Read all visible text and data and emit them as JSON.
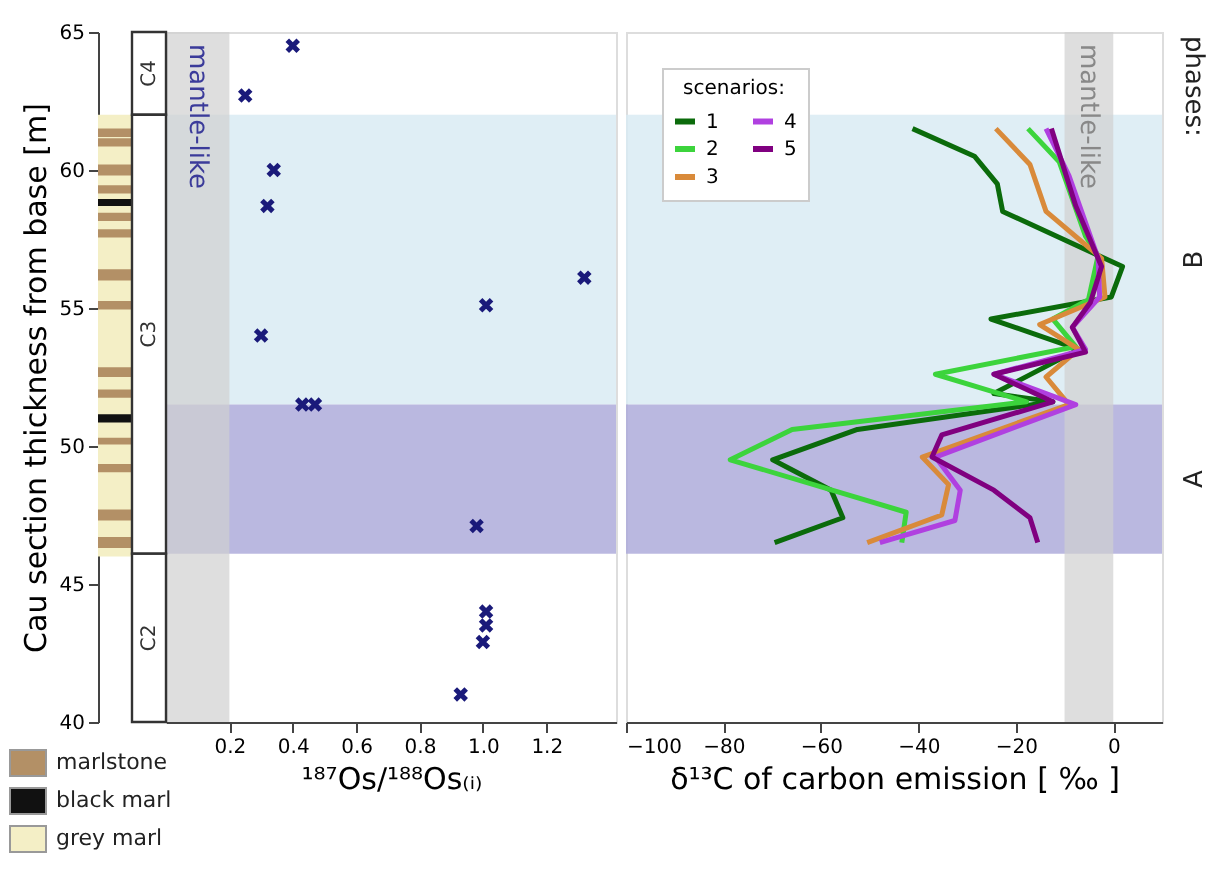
{
  "chart_data": [
    {
      "type": "scatter",
      "xlabel": "¹⁸⁷Os/¹⁸⁸Os₍ᵢ₎",
      "ylabel": "Cau section thickness from base [m]",
      "xlim": [
        0,
        1.42
      ],
      "xticks": [
        0.2,
        0.4,
        0.6,
        0.8,
        {
          "value": 1,
          "label": "1.0"
        },
        1.2
      ],
      "ylim": [
        40,
        65
      ],
      "yticks": [
        40,
        45,
        50,
        55,
        60,
        65
      ],
      "marker": "cross",
      "x": [
        0.4,
        0.25,
        0.34,
        0.32,
        1.32,
        1.01,
        0.3,
        0.43,
        0.47,
        0.98,
        1.01,
        1.01,
        1.0,
        0.93
      ],
      "series": [
        {
          "color": "#1a1a7a",
          "values": [
            64.5,
            62.7,
            60.0,
            58.7,
            56.1,
            55.1,
            54.0,
            51.5,
            51.5,
            47.1,
            44.0,
            43.5,
            42.9,
            41.0
          ]
        }
      ],
      "bands": [
        {
          "axis": "y",
          "from": 51.5,
          "to": 62,
          "color": "#d9ebf3"
        },
        {
          "axis": "y",
          "from": 46.1,
          "to": 51.5,
          "color": "#aeabda"
        },
        {
          "axis": "x",
          "from": 0,
          "to": 0.2,
          "label": "mantle-like",
          "color": "#d0d0d0"
        }
      ],
      "annotations": [
        "C4",
        "C3",
        "C2",
        "marlstone",
        "black marl",
        "grey marl"
      ]
    },
    {
      "type": "line",
      "xlabel": "δ¹³C of carbon emission [ ‰ ]",
      "xlim": [
        -100,
        10
      ],
      "xticks": [
        -100,
        -80,
        -60,
        -40,
        -20,
        0
      ],
      "ylim": [
        40,
        65
      ],
      "tick_labels": "x",
      "legend": "top left",
      "legend_title": "scenarios:",
      "series": [
        {
          "name": "1",
          "color": "#0b6b0b",
          "x": [
            -41.2,
            -28.5,
            -23.8,
            -22.7,
            1.9,
            -0.4,
            -25.1,
            -7.1,
            -24.5,
            -12.4,
            -52.5,
            -69.9,
            -57.9,
            -55.5,
            -69.5
          ],
          "values": [
            61.5,
            60.5,
            59.5,
            58.5,
            56.5,
            55.4,
            54.6,
            53.5,
            51.9,
            51.6,
            50.6,
            49.5,
            48.4,
            47.4,
            46.5
          ]
        },
        {
          "name": "2",
          "color": "#3cd43c",
          "x": [
            -17.5,
            -11.1,
            -5.7,
            -3.1,
            -5.1,
            -12.4,
            -7.7,
            -36.5,
            -17.8,
            -65.9,
            -78.6,
            -42.5,
            -43.4
          ],
          "values": [
            61.5,
            60.3,
            57.6,
            56.9,
            55.3,
            54.6,
            53.6,
            52.6,
            51.6,
            50.6,
            49.5,
            47.6,
            46.5
          ]
        },
        {
          "name": "3",
          "color": "#d98a3a",
          "x": [
            -24.1,
            -17.1,
            -13.8,
            -2.4,
            -1.7,
            -15.1,
            -7.1,
            -13.8,
            -9.1,
            -39.2,
            -33.8,
            -35.2,
            -50.5
          ],
          "values": [
            61.5,
            60.2,
            58.5,
            56.8,
            55.4,
            54.4,
            53.5,
            52.5,
            51.5,
            49.6,
            48.6,
            47.5,
            46.5
          ]
        },
        {
          "name": "4",
          "color": "#b040e0",
          "x": [
            -13.8,
            -9.1,
            -3.1,
            -2.8,
            -8.4,
            -5.7,
            -24.5,
            -7.7,
            -36.5,
            -31.4,
            -32.5,
            -47.9
          ],
          "values": [
            61.5,
            59.8,
            56.8,
            55.4,
            54.3,
            53.5,
            52.6,
            51.5,
            49.6,
            48.4,
            47.3,
            46.5
          ]
        },
        {
          "name": "5",
          "color": "#800080",
          "x": [
            -12.7,
            -7.7,
            -2.4,
            -4.7,
            -8.4,
            -5.7,
            -24.5,
            -12.4,
            -35.2,
            -37.2,
            -24.5,
            -17.1,
            -15.5
          ],
          "values": [
            61.5,
            58.7,
            56.5,
            55.2,
            54.3,
            53.4,
            52.6,
            51.6,
            50.4,
            49.6,
            48.4,
            47.4,
            46.5
          ]
        }
      ],
      "bands": [
        {
          "axis": "y",
          "from": 51.5,
          "to": 62,
          "label": "B",
          "color": "#d9ebf3"
        },
        {
          "axis": "y",
          "from": 46.1,
          "to": 51.5,
          "label": "A",
          "color": "#aeabda"
        },
        {
          "axis": "x",
          "from": -10,
          "to": 0,
          "label": "mantle-like",
          "color": "#d0d0d0"
        }
      ],
      "annotations": [
        "phases:"
      ]
    }
  ]
}
